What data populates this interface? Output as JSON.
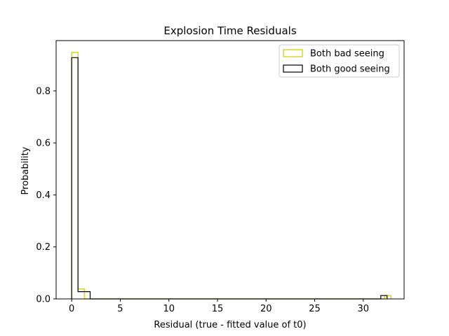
{
  "chart_data": {
    "type": "histogram",
    "title": "Explosion Time Residuals",
    "xlabel": "Residual (true - fitted value of t0)",
    "ylabel": "Probability",
    "xlim": [
      -1.6,
      34.2
    ],
    "ylim": [
      0,
      0.9935
    ],
    "xticks": [
      0,
      5,
      10,
      15,
      20,
      25,
      30
    ],
    "yticks": [
      0.0,
      0.2,
      0.4,
      0.6,
      0.8
    ],
    "ytick_labels": [
      "0.0",
      "0.2",
      "0.4",
      "0.6",
      "0.8"
    ],
    "legend_position": "top-right",
    "series": [
      {
        "name": "Both bad seeing",
        "color": "#cccc00",
        "histtype": "step",
        "bins": [
          {
            "x0": 0.0,
            "x1": 0.65,
            "value": 0.948
          },
          {
            "x0": 0.65,
            "x1": 1.3,
            "value": 0.038
          },
          {
            "x0": 1.3,
            "x1": 32.2,
            "value": 0.0
          },
          {
            "x0": 32.2,
            "x1": 32.85,
            "value": 0.013
          }
        ]
      },
      {
        "name": "Both good seeing",
        "color": "#000000",
        "histtype": "step",
        "bins": [
          {
            "x0": 0.0,
            "x1": 0.65,
            "value": 0.928
          },
          {
            "x0": 0.65,
            "x1": 1.9,
            "value": 0.028
          },
          {
            "x0": 1.9,
            "x1": 31.8,
            "value": 0.0
          },
          {
            "x0": 31.8,
            "x1": 32.45,
            "value": 0.013
          }
        ]
      }
    ]
  }
}
